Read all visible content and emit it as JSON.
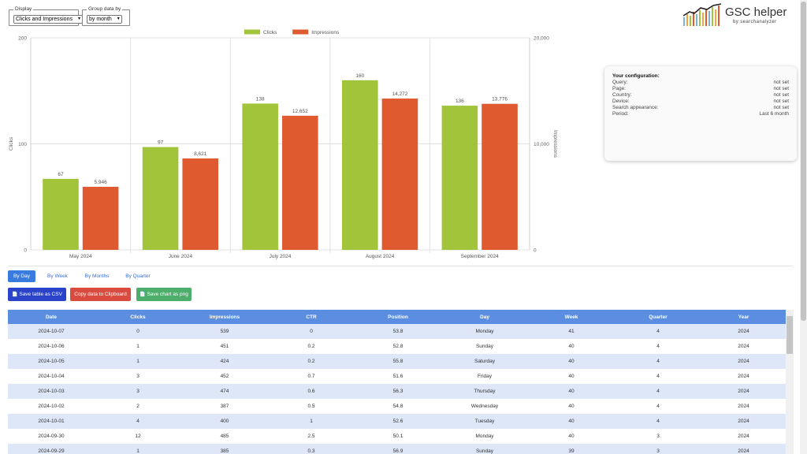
{
  "controls": {
    "display_legend": "Display",
    "display_value": "Clicks and Impressions",
    "group_legend": "Group data by",
    "group_value": "by month"
  },
  "logo": {
    "title": "GSC helper",
    "subtitle": "by searchanalyzer"
  },
  "chart_data": {
    "type": "bar",
    "categories": [
      "May 2024",
      "June 2024",
      "July 2024",
      "August 2024",
      "September 2024"
    ],
    "series": [
      {
        "name": "Clicks",
        "axis": "left",
        "color": "#a1c43a",
        "values": [
          67,
          97,
          138,
          160,
          136
        ],
        "labels": [
          "67",
          "97",
          "138",
          "160",
          "136"
        ]
      },
      {
        "name": "Impressions",
        "axis": "right",
        "color": "#e05a30",
        "values": [
          5946,
          8621,
          12652,
          14272,
          13776
        ],
        "labels": [
          "5,946",
          "8,621",
          "12,652",
          "14,272",
          "13,776"
        ]
      }
    ],
    "ylabel_left": "Clicks",
    "ylabel_right": "Impressions",
    "ylim_left": [
      0,
      200
    ],
    "ylim_right": [
      0,
      20000
    ],
    "yticks_left": [
      "0",
      "100",
      "200"
    ],
    "yticks_right": [
      "0",
      "10,000",
      "20,000"
    ],
    "legend_position": "top-center",
    "grid": true
  },
  "config": {
    "title": "Your configuration:",
    "rows": [
      {
        "label": "Query:",
        "value": "not set"
      },
      {
        "label": "Page:",
        "value": "not set"
      },
      {
        "label": "Country:",
        "value": "not set"
      },
      {
        "label": "Device:",
        "value": "not set"
      },
      {
        "label": "Search appearance:",
        "value": "not set"
      },
      {
        "label": "Period:",
        "value": "Last 6 month"
      }
    ]
  },
  "tabs": [
    {
      "label": "By Day",
      "active": true
    },
    {
      "label": "By Week",
      "active": false
    },
    {
      "label": "By Months",
      "active": false
    },
    {
      "label": "By Quarter",
      "active": false
    }
  ],
  "buttons": {
    "csv": "Save table as CSV",
    "clipboard": "Copy data to Clipboard",
    "png": "Save chart as png",
    "file_icon": "📄"
  },
  "table": {
    "headers": [
      "Date",
      "Clicks",
      "Impressions",
      "CTR",
      "Position",
      "Day",
      "Week",
      "Quarter",
      "Year"
    ],
    "rows": [
      [
        "2024-10-07",
        "0",
        "539",
        "0",
        "53.8",
        "Monday",
        "41",
        "4",
        "2024"
      ],
      [
        "2024-10-06",
        "1",
        "451",
        "0.2",
        "52.8",
        "Sunday",
        "40",
        "4",
        "2024"
      ],
      [
        "2024-10-05",
        "1",
        "424",
        "0.2",
        "55.8",
        "Saturday",
        "40",
        "4",
        "2024"
      ],
      [
        "2024-10-04",
        "3",
        "452",
        "0.7",
        "51.6",
        "Friday",
        "40",
        "4",
        "2024"
      ],
      [
        "2024-10-03",
        "3",
        "474",
        "0.6",
        "56.3",
        "Thursday",
        "40",
        "4",
        "2024"
      ],
      [
        "2024-10-02",
        "2",
        "387",
        "0.5",
        "54.8",
        "Wednesday",
        "40",
        "4",
        "2024"
      ],
      [
        "2024-10-01",
        "4",
        "400",
        "1",
        "52.6",
        "Tuesday",
        "40",
        "4",
        "2024"
      ],
      [
        "2024-09-30",
        "12",
        "485",
        "2.5",
        "50.1",
        "Monday",
        "40",
        "3",
        "2024"
      ],
      [
        "2024-09-29",
        "1",
        "385",
        "0.3",
        "56.9",
        "Sunday",
        "39",
        "3",
        "2024"
      ]
    ]
  }
}
